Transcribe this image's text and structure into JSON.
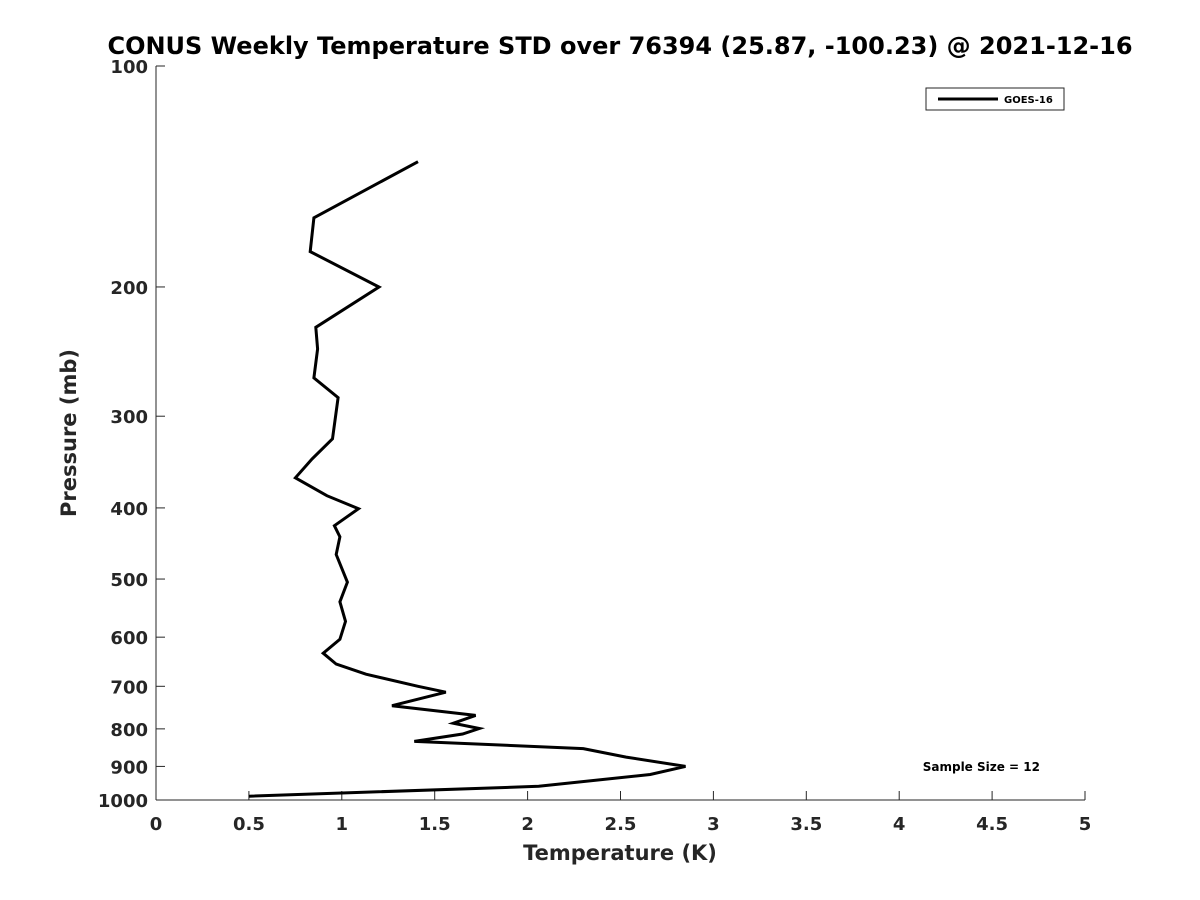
{
  "chart_data": {
    "type": "line",
    "title": "CONUS Weekly Temperature STD over 76394 (25.87, -100.23) @ 2021-12-16",
    "xlabel": "Temperature (K)",
    "ylabel": "Pressure (mb)",
    "xlim": [
      0,
      5
    ],
    "ylim": [
      100,
      1000
    ],
    "y_scale": "log",
    "y_reversed": true,
    "x_ticks": [
      0,
      0.5,
      1,
      1.5,
      2,
      2.5,
      3,
      3.5,
      4,
      4.5,
      5
    ],
    "x_tick_labels": [
      "0",
      "0.5",
      "1",
      "1.5",
      "2",
      "2.5",
      "3",
      "3.5",
      "4",
      "4.5",
      "5"
    ],
    "y_ticks": [
      100,
      200,
      300,
      400,
      500,
      600,
      700,
      800,
      900,
      1000
    ],
    "y_tick_labels": [
      "100",
      "200",
      "300",
      "400",
      "500",
      "600",
      "700",
      "800",
      "900",
      "1000"
    ],
    "grid": false,
    "legend_position": "top-right",
    "annotation": "Sample Size = 12",
    "series": [
      {
        "name": "GOES-16",
        "color": "#000000",
        "points": [
          [
            1.41,
            135
          ],
          [
            0.85,
            161
          ],
          [
            0.83,
            179
          ],
          [
            1.2,
            200
          ],
          [
            0.86,
            227
          ],
          [
            0.87,
            243
          ],
          [
            0.85,
            266
          ],
          [
            0.98,
            283
          ],
          [
            0.95,
            322
          ],
          [
            0.84,
            343
          ],
          [
            0.75,
            364
          ],
          [
            0.92,
            385
          ],
          [
            1.09,
            401
          ],
          [
            0.96,
            423
          ],
          [
            0.99,
            438
          ],
          [
            0.97,
            463
          ],
          [
            1.03,
            505
          ],
          [
            0.99,
            537
          ],
          [
            1.02,
            571
          ],
          [
            0.99,
            604
          ],
          [
            0.9,
            631
          ],
          [
            0.97,
            653
          ],
          [
            1.13,
            674
          ],
          [
            1.41,
            700
          ],
          [
            1.56,
            713
          ],
          [
            1.27,
            744
          ],
          [
            1.72,
            767
          ],
          [
            1.6,
            786
          ],
          [
            1.74,
            799
          ],
          [
            1.65,
            813
          ],
          [
            1.39,
            832
          ],
          [
            2.3,
            851
          ],
          [
            2.53,
            874
          ],
          [
            2.85,
            900
          ],
          [
            2.66,
            923
          ],
          [
            2.06,
            958
          ],
          [
            0.5,
            988
          ]
        ]
      }
    ]
  }
}
